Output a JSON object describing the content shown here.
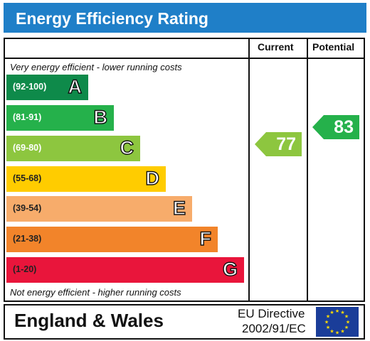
{
  "title": "Energy Efficiency Rating",
  "columns": {
    "current": "Current",
    "potential": "Potential"
  },
  "top_note": "Very energy efficient - lower running costs",
  "bottom_note": "Not energy efficient - higher running costs",
  "bands": [
    {
      "range": "(92-100)",
      "letter": "A",
      "color": "#0e8a4a"
    },
    {
      "range": "(81-91)",
      "letter": "B",
      "color": "#25b14b"
    },
    {
      "range": "(69-80)",
      "letter": "C",
      "color": "#8dc63f"
    },
    {
      "range": "(55-68)",
      "letter": "D",
      "color": "#ffcc00"
    },
    {
      "range": "(39-54)",
      "letter": "E",
      "color": "#f7ac6b"
    },
    {
      "range": "(21-38)",
      "letter": "F",
      "color": "#f2842a"
    },
    {
      "range": "(1-20)",
      "letter": "G",
      "color": "#e9153b"
    }
  ],
  "current": {
    "value": "77",
    "color": "#8dc63f"
  },
  "potential": {
    "value": "83",
    "color": "#25b14b"
  },
  "footer": {
    "region": "England & Wales",
    "directive_line1": "EU Directive",
    "directive_line2": "2002/91/EC"
  }
}
